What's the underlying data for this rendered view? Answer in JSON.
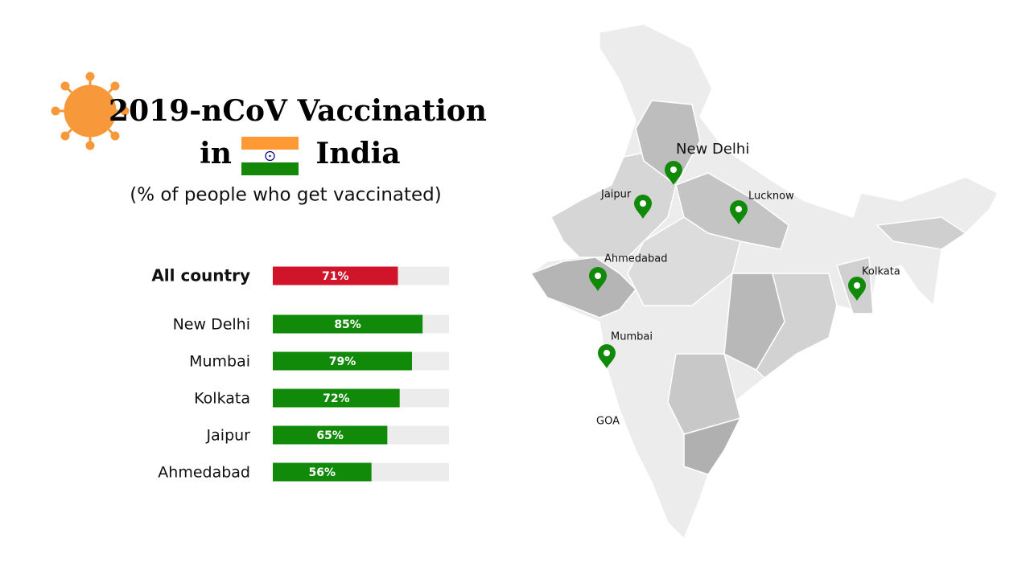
{
  "header": {
    "title": "2019-nCoV Vaccination",
    "title_prefix": "in",
    "country": "India",
    "subtitle": "(% of people who get vaccinated)"
  },
  "chart_data": {
    "type": "bar",
    "orientation": "horizontal",
    "categories": [
      "All country",
      "New Delhi",
      "Mumbai",
      "Kolkata",
      "Jaipur",
      "Ahmedabad"
    ],
    "values": [
      71,
      85,
      79,
      72,
      65,
      56
    ],
    "value_labels": [
      "71%",
      "85%",
      "79%",
      "72%",
      "65%",
      "56%"
    ],
    "colors": [
      "#d0152b",
      "#118a0a",
      "#118a0a",
      "#118a0a",
      "#118a0a",
      "#118a0a"
    ],
    "track_color": "#ececec",
    "xlim": [
      0,
      100
    ]
  },
  "map": {
    "labels": [
      "New Delhi",
      "Jaipur",
      "Lucknow",
      "Ahmedabad",
      "Kolkata",
      "Mumbai",
      "GOA"
    ]
  }
}
